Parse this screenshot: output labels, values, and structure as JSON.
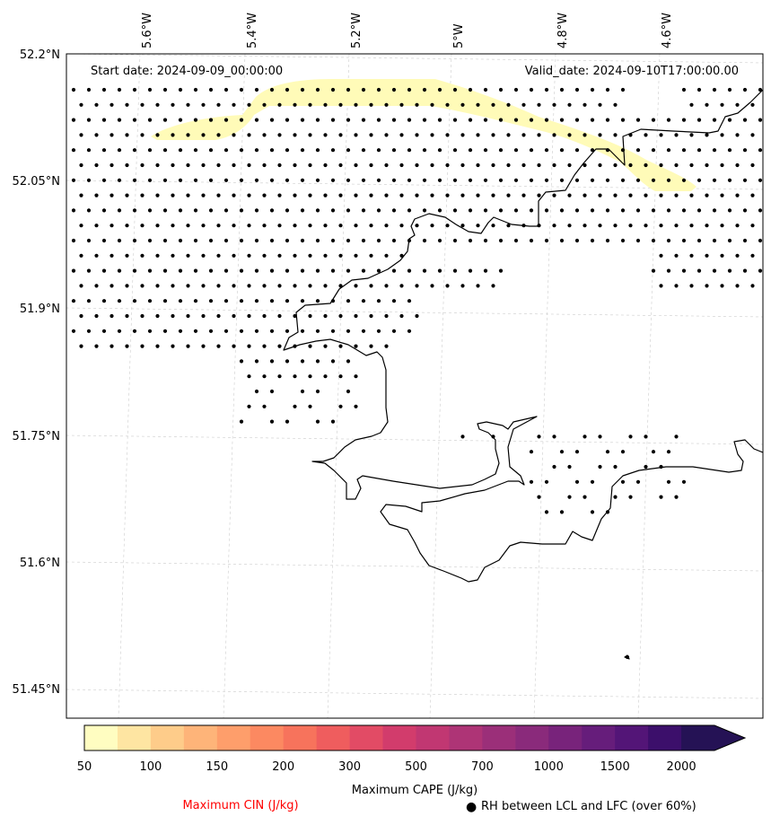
{
  "map": {
    "start_label": "Start date: 2024-09-09_00:00:00",
    "valid_label": "Valid_date: 2024-09-10T17:00:00.00",
    "lon_labels": [
      "5.6°W",
      "5.4°W",
      "5.2°W",
      "5°W",
      "4.8°W",
      "4.6°W"
    ],
    "lat_labels": [
      "52.2°N",
      "52.05°N",
      "51.9°N",
      "51.75°N",
      "51.6°N",
      "51.45°N"
    ],
    "cape_highlight_color": "#fffbb8",
    "coast_color": "#000000",
    "dot_color": "#000000"
  },
  "colorbar": {
    "ticks": [
      "50",
      "100",
      "150",
      "200",
      "300",
      "500",
      "700",
      "1000",
      "1500",
      "2000"
    ],
    "colors": [
      "#fffdc1",
      "#fee5a2",
      "#fecc8a",
      "#feb479",
      "#fe9e6b",
      "#fc8961",
      "#f7735c",
      "#ef5d5e",
      "#e24b65",
      "#d23c6c",
      "#c13772",
      "#ae3476",
      "#9b2f79",
      "#8a2a7b",
      "#78237b",
      "#661d7b",
      "#531577",
      "#3c0f6b",
      "#251255"
    ],
    "label": "Maximum CAPE (J/kg)"
  },
  "legend": {
    "cin_label": "Maximum CIN (J/kg)",
    "cin_color": "#ff0000",
    "rh_marker": "●",
    "rh_label": "RH between LCL and LFC (over 60%)"
  }
}
